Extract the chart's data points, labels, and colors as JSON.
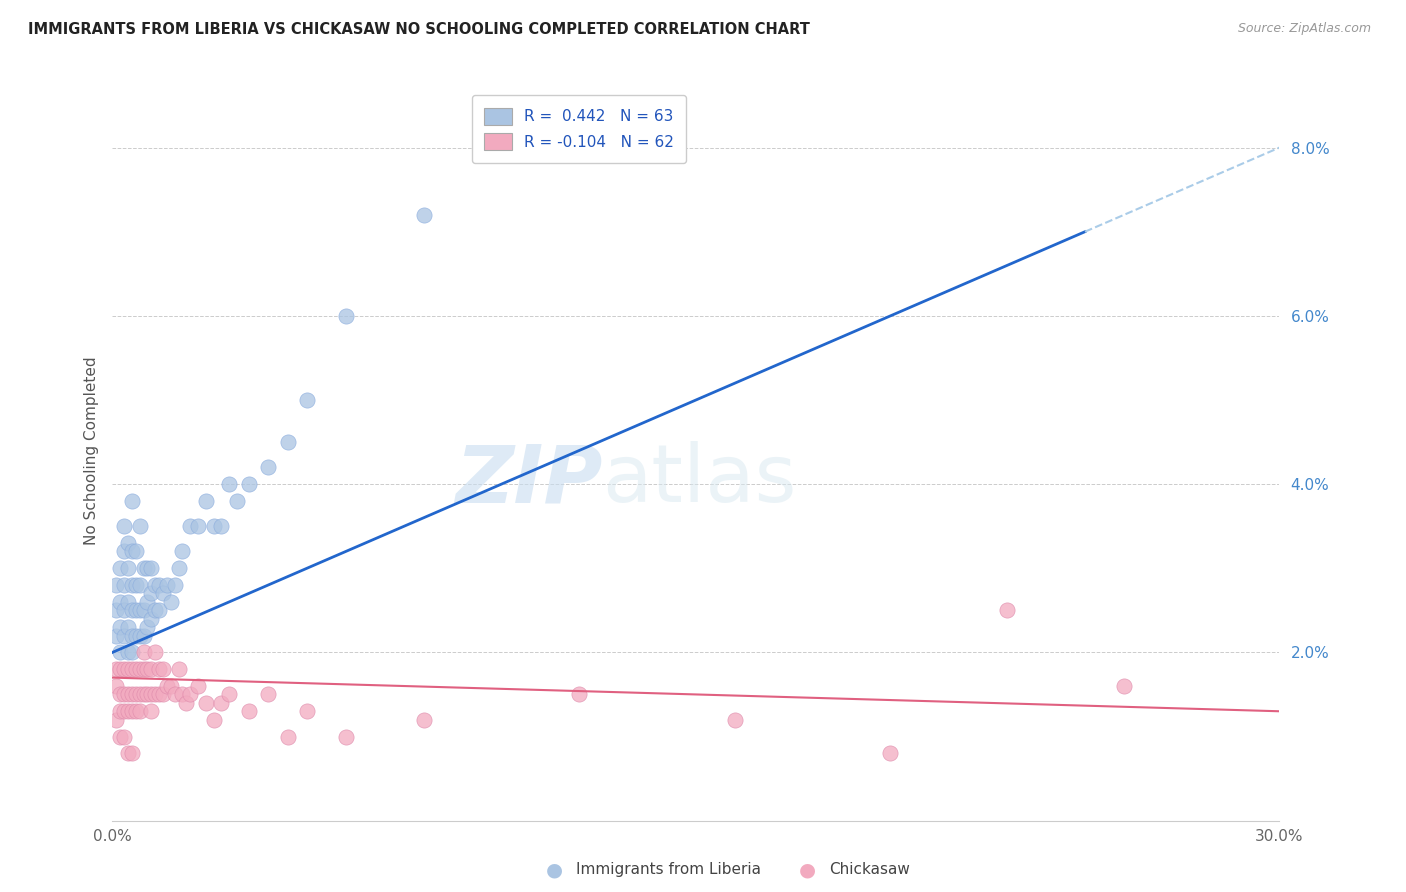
{
  "title": "IMMIGRANTS FROM LIBERIA VS CHICKASAW NO SCHOOLING COMPLETED CORRELATION CHART",
  "source": "Source: ZipAtlas.com",
  "ylabel": "No Schooling Completed",
  "xmin": 0.0,
  "xmax": 0.3,
  "ymin": 0.0,
  "ymax": 0.088,
  "yticks": [
    0.0,
    0.02,
    0.04,
    0.06,
    0.08
  ],
  "ytick_labels": [
    "",
    "2.0%",
    "4.0%",
    "6.0%",
    "8.0%"
  ],
  "xticks": [
    0.0,
    0.05,
    0.1,
    0.15,
    0.2,
    0.25,
    0.3
  ],
  "xtick_labels": [
    "0.0%",
    "",
    "",
    "",
    "",
    "",
    "30.0%"
  ],
  "blue_R": 0.442,
  "blue_N": 63,
  "pink_R": -0.104,
  "pink_N": 62,
  "blue_color": "#aac4e2",
  "pink_color": "#f2aabf",
  "blue_line_color": "#2266cc",
  "pink_line_color": "#e06080",
  "dashed_line_color": "#aacce8",
  "legend_label_blue": "Immigrants from Liberia",
  "legend_label_pink": "Chickasaw",
  "watermark_zip": "ZIP",
  "watermark_atlas": "atlas",
  "blue_line_x0": 0.0,
  "blue_line_y0": 0.02,
  "blue_line_x1": 0.25,
  "blue_line_y1": 0.07,
  "blue_line_solid_end": 0.25,
  "pink_line_x0": 0.0,
  "pink_line_y0": 0.017,
  "pink_line_x1": 0.3,
  "pink_line_y1": 0.013,
  "blue_scatter_x": [
    0.001,
    0.001,
    0.001,
    0.002,
    0.002,
    0.002,
    0.002,
    0.003,
    0.003,
    0.003,
    0.003,
    0.003,
    0.004,
    0.004,
    0.004,
    0.004,
    0.004,
    0.005,
    0.005,
    0.005,
    0.005,
    0.005,
    0.005,
    0.006,
    0.006,
    0.006,
    0.006,
    0.007,
    0.007,
    0.007,
    0.007,
    0.008,
    0.008,
    0.008,
    0.009,
    0.009,
    0.009,
    0.01,
    0.01,
    0.01,
    0.011,
    0.011,
    0.012,
    0.012,
    0.013,
    0.014,
    0.015,
    0.016,
    0.017,
    0.018,
    0.02,
    0.022,
    0.024,
    0.026,
    0.028,
    0.03,
    0.032,
    0.035,
    0.04,
    0.045,
    0.05,
    0.06,
    0.08
  ],
  "blue_scatter_y": [
    0.022,
    0.025,
    0.028,
    0.02,
    0.023,
    0.026,
    0.03,
    0.022,
    0.025,
    0.028,
    0.032,
    0.035,
    0.02,
    0.023,
    0.026,
    0.03,
    0.033,
    0.02,
    0.022,
    0.025,
    0.028,
    0.032,
    0.038,
    0.022,
    0.025,
    0.028,
    0.032,
    0.022,
    0.025,
    0.028,
    0.035,
    0.022,
    0.025,
    0.03,
    0.023,
    0.026,
    0.03,
    0.024,
    0.027,
    0.03,
    0.025,
    0.028,
    0.025,
    0.028,
    0.027,
    0.028,
    0.026,
    0.028,
    0.03,
    0.032,
    0.035,
    0.035,
    0.038,
    0.035,
    0.035,
    0.04,
    0.038,
    0.04,
    0.042,
    0.045,
    0.05,
    0.06,
    0.072
  ],
  "pink_scatter_x": [
    0.001,
    0.001,
    0.001,
    0.002,
    0.002,
    0.002,
    0.002,
    0.003,
    0.003,
    0.003,
    0.003,
    0.004,
    0.004,
    0.004,
    0.004,
    0.005,
    0.005,
    0.005,
    0.005,
    0.006,
    0.006,
    0.006,
    0.007,
    0.007,
    0.007,
    0.008,
    0.008,
    0.008,
    0.009,
    0.009,
    0.01,
    0.01,
    0.01,
    0.011,
    0.011,
    0.012,
    0.012,
    0.013,
    0.013,
    0.014,
    0.015,
    0.016,
    0.017,
    0.018,
    0.019,
    0.02,
    0.022,
    0.024,
    0.026,
    0.028,
    0.03,
    0.035,
    0.04,
    0.045,
    0.05,
    0.06,
    0.08,
    0.12,
    0.16,
    0.2,
    0.23,
    0.26
  ],
  "pink_scatter_y": [
    0.018,
    0.016,
    0.012,
    0.015,
    0.018,
    0.013,
    0.01,
    0.015,
    0.018,
    0.013,
    0.01,
    0.015,
    0.018,
    0.013,
    0.008,
    0.015,
    0.018,
    0.013,
    0.008,
    0.015,
    0.018,
    0.013,
    0.015,
    0.018,
    0.013,
    0.015,
    0.018,
    0.02,
    0.015,
    0.018,
    0.015,
    0.018,
    0.013,
    0.015,
    0.02,
    0.015,
    0.018,
    0.015,
    0.018,
    0.016,
    0.016,
    0.015,
    0.018,
    0.015,
    0.014,
    0.015,
    0.016,
    0.014,
    0.012,
    0.014,
    0.015,
    0.013,
    0.015,
    0.01,
    0.013,
    0.01,
    0.012,
    0.015,
    0.012,
    0.008,
    0.025,
    0.016
  ]
}
